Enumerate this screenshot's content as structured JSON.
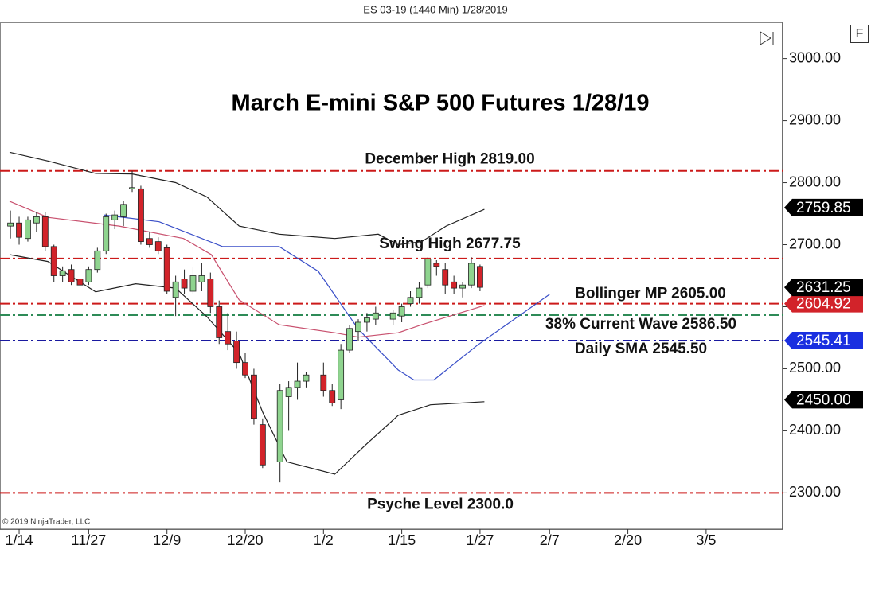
{
  "header": "ES 03-19 (1440 Min)  1/28/2019",
  "copyright": "© 2019 NinjaTrader, LLC",
  "button": "F",
  "chart_data": {
    "type": "candlestick",
    "title": "March E-mini S&P 500 Futures 1/28/19",
    "x": [
      1,
      2,
      3,
      4,
      5,
      6,
      7,
      8,
      9,
      10,
      11,
      12,
      13,
      14,
      15,
      16,
      17,
      18,
      19,
      20,
      21,
      22,
      23,
      24,
      25,
      26,
      27,
      28,
      29,
      30,
      32,
      33,
      34,
      35,
      37,
      38,
      39,
      40,
      41,
      42,
      43,
      45,
      46,
      47,
      48,
      49,
      50,
      51,
      52,
      53,
      54,
      55
    ],
    "open": [
      2730,
      2735,
      2710,
      2735,
      2745,
      2697,
      2650,
      2660,
      2645,
      2640,
      2660,
      2690,
      2740,
      2745,
      2790,
      2790,
      2710,
      2705,
      2695,
      2615,
      2645,
      2625,
      2640,
      2645,
      2600,
      2560,
      2545,
      2510,
      2490,
      2410,
      2350,
      2455,
      2470,
      2480,
      2490,
      2465,
      2450,
      2530,
      2560,
      2575,
      2580,
      2580,
      2585,
      2605,
      2615,
      2635,
      2670,
      2660,
      2640,
      2630,
      2635,
      2665
    ],
    "high": [
      2755,
      2745,
      2745,
      2752,
      2752,
      2700,
      2665,
      2668,
      2650,
      2665,
      2695,
      2750,
      2755,
      2770,
      2819,
      2795,
      2720,
      2712,
      2700,
      2650,
      2660,
      2665,
      2670,
      2655,
      2610,
      2590,
      2560,
      2525,
      2500,
      2420,
      2475,
      2480,
      2510,
      2495,
      2510,
      2475,
      2540,
      2570,
      2580,
      2590,
      2600,
      2595,
      2605,
      2625,
      2640,
      2680,
      2675,
      2670,
      2650,
      2640,
      2680,
      2668
    ],
    "low": [
      2710,
      2700,
      2705,
      2720,
      2690,
      2640,
      2640,
      2635,
      2630,
      2635,
      2655,
      2685,
      2725,
      2730,
      2785,
      2700,
      2695,
      2685,
      2620,
      2585,
      2620,
      2620,
      2625,
      2590,
      2540,
      2530,
      2500,
      2485,
      2410,
      2340,
      2317,
      2400,
      2450,
      2470,
      2455,
      2440,
      2435,
      2525,
      2545,
      2560,
      2570,
      2570,
      2575,
      2600,
      2605,
      2630,
      2650,
      2620,
      2620,
      2615,
      2630,
      2625
    ],
    "close": [
      2735,
      2712,
      2740,
      2745,
      2697,
      2650,
      2658,
      2640,
      2635,
      2660,
      2690,
      2745,
      2748,
      2765,
      2792,
      2705,
      2700,
      2690,
      2625,
      2640,
      2630,
      2650,
      2650,
      2600,
      2550,
      2540,
      2510,
      2490,
      2420,
      2345,
      2465,
      2470,
      2480,
      2490,
      2465,
      2445,
      2530,
      2565,
      2575,
      2582,
      2590,
      2590,
      2600,
      2615,
      2630,
      2677,
      2665,
      2635,
      2630,
      2635,
      2670,
      2631.25
    ],
    "up_color": "#8fd48f",
    "down_color": "#d2232a",
    "lines": [
      {
        "color": "#222222",
        "x": [
          0.9,
          5.3,
          10.8,
          15,
          20,
          23.6,
          27.3,
          31.9,
          38.3,
          43.3,
          45.6,
          48.3,
          51.1,
          55.5
        ],
        "values": [
          2849,
          2835,
          2815,
          2814,
          2800,
          2777,
          2730,
          2717,
          2710,
          2717,
          2700,
          2705,
          2730,
          2757
        ]
      },
      {
        "color": "#c8506e",
        "x": [
          0.9,
          5.3,
          13.5,
          20.9,
          24.1,
          27.3,
          31.9,
          38.3,
          41,
          45.6,
          48.3,
          55.5
        ],
        "values": [
          2770,
          2744,
          2730,
          2710,
          2684,
          2611,
          2571,
          2558,
          2551,
          2558,
          2571,
          2602
        ]
      },
      {
        "color": "#222222",
        "x": [
          0.9,
          5.3,
          10.8,
          15.4,
          20,
          23.6,
          27.3,
          30,
          32.8,
          38.3,
          41.9,
          45.6,
          49.3,
          55.5
        ],
        "values": [
          2684,
          2673,
          2624,
          2637,
          2630,
          2584,
          2525,
          2430,
          2350,
          2330,
          2378,
          2425,
          2442,
          2447
        ]
      },
      {
        "color": "#3a4fc8",
        "x": [
          11.7,
          18.1,
          25.4,
          31.9,
          36.4,
          41,
          45.6,
          47.4,
          49.7,
          54.7,
          63
        ],
        "values": [
          2748,
          2737,
          2697,
          2697,
          2657,
          2564,
          2498,
          2482,
          2482,
          2538,
          2620
        ]
      }
    ],
    "levels": [
      {
        "label": "December High 2819.00",
        "value": 2819,
        "color": "#cc1a1a"
      },
      {
        "label": "Swing High 2677.75",
        "value": 2677.75,
        "color": "#cc1a1a"
      },
      {
        "label": "Bollinger MP 2605.00",
        "value": 2605,
        "color": "#cc1a1a"
      },
      {
        "label": "38% Current Wave 2586.50",
        "value": 2586.5,
        "color": "#2e8b57"
      },
      {
        "label": "Daily SMA 2545.50",
        "value": 2545.5,
        "color": "#1a1aa0"
      },
      {
        "label": "Psyche Level 2300.0",
        "value": 2300,
        "color": "#cc1a1a"
      }
    ],
    "price_markers": [
      {
        "value": 2759.85,
        "label": "2759.85",
        "color": "#000000"
      },
      {
        "value": 2604.92,
        "label": "2604.92",
        "color": "#d2232a"
      },
      {
        "value": 2631.25,
        "label": "2631.25",
        "color": "#000000"
      },
      {
        "value": 2545.41,
        "label": "2545.41",
        "color": "#1a2fe0"
      },
      {
        "value": 2450,
        "label": "2450.00",
        "color": "#000000"
      }
    ],
    "xlim": [
      -0.2,
      89.8
    ],
    "xticks": [
      {
        "value": 2,
        "label": "1/14"
      },
      {
        "value": 10,
        "label": "11/27"
      },
      {
        "value": 19,
        "label": "12/9"
      },
      {
        "value": 28,
        "label": "12/20"
      },
      {
        "value": 37,
        "label": "1/2"
      },
      {
        "value": 46,
        "label": "1/15"
      },
      {
        "value": 55,
        "label": "1/27"
      },
      {
        "value": 63,
        "label": "2/7"
      },
      {
        "value": 72,
        "label": "2/20"
      },
      {
        "value": 81,
        "label": "3/5"
      }
    ],
    "ylim": [
      2241.5,
      3058.5
    ],
    "yticks": [
      {
        "value": 2300,
        "label": "2300.00"
      },
      {
        "value": 2400,
        "label": "2400.00"
      },
      {
        "value": 2500,
        "label": "2500.00"
      },
      {
        "value": 2600,
        "label": "2600.00"
      },
      {
        "value": 2700,
        "label": "2700.00"
      },
      {
        "value": 2800,
        "label": "2800.00"
      },
      {
        "value": 2900,
        "label": "2900.00"
      },
      {
        "value": 3000,
        "label": "3000.00"
      }
    ]
  }
}
